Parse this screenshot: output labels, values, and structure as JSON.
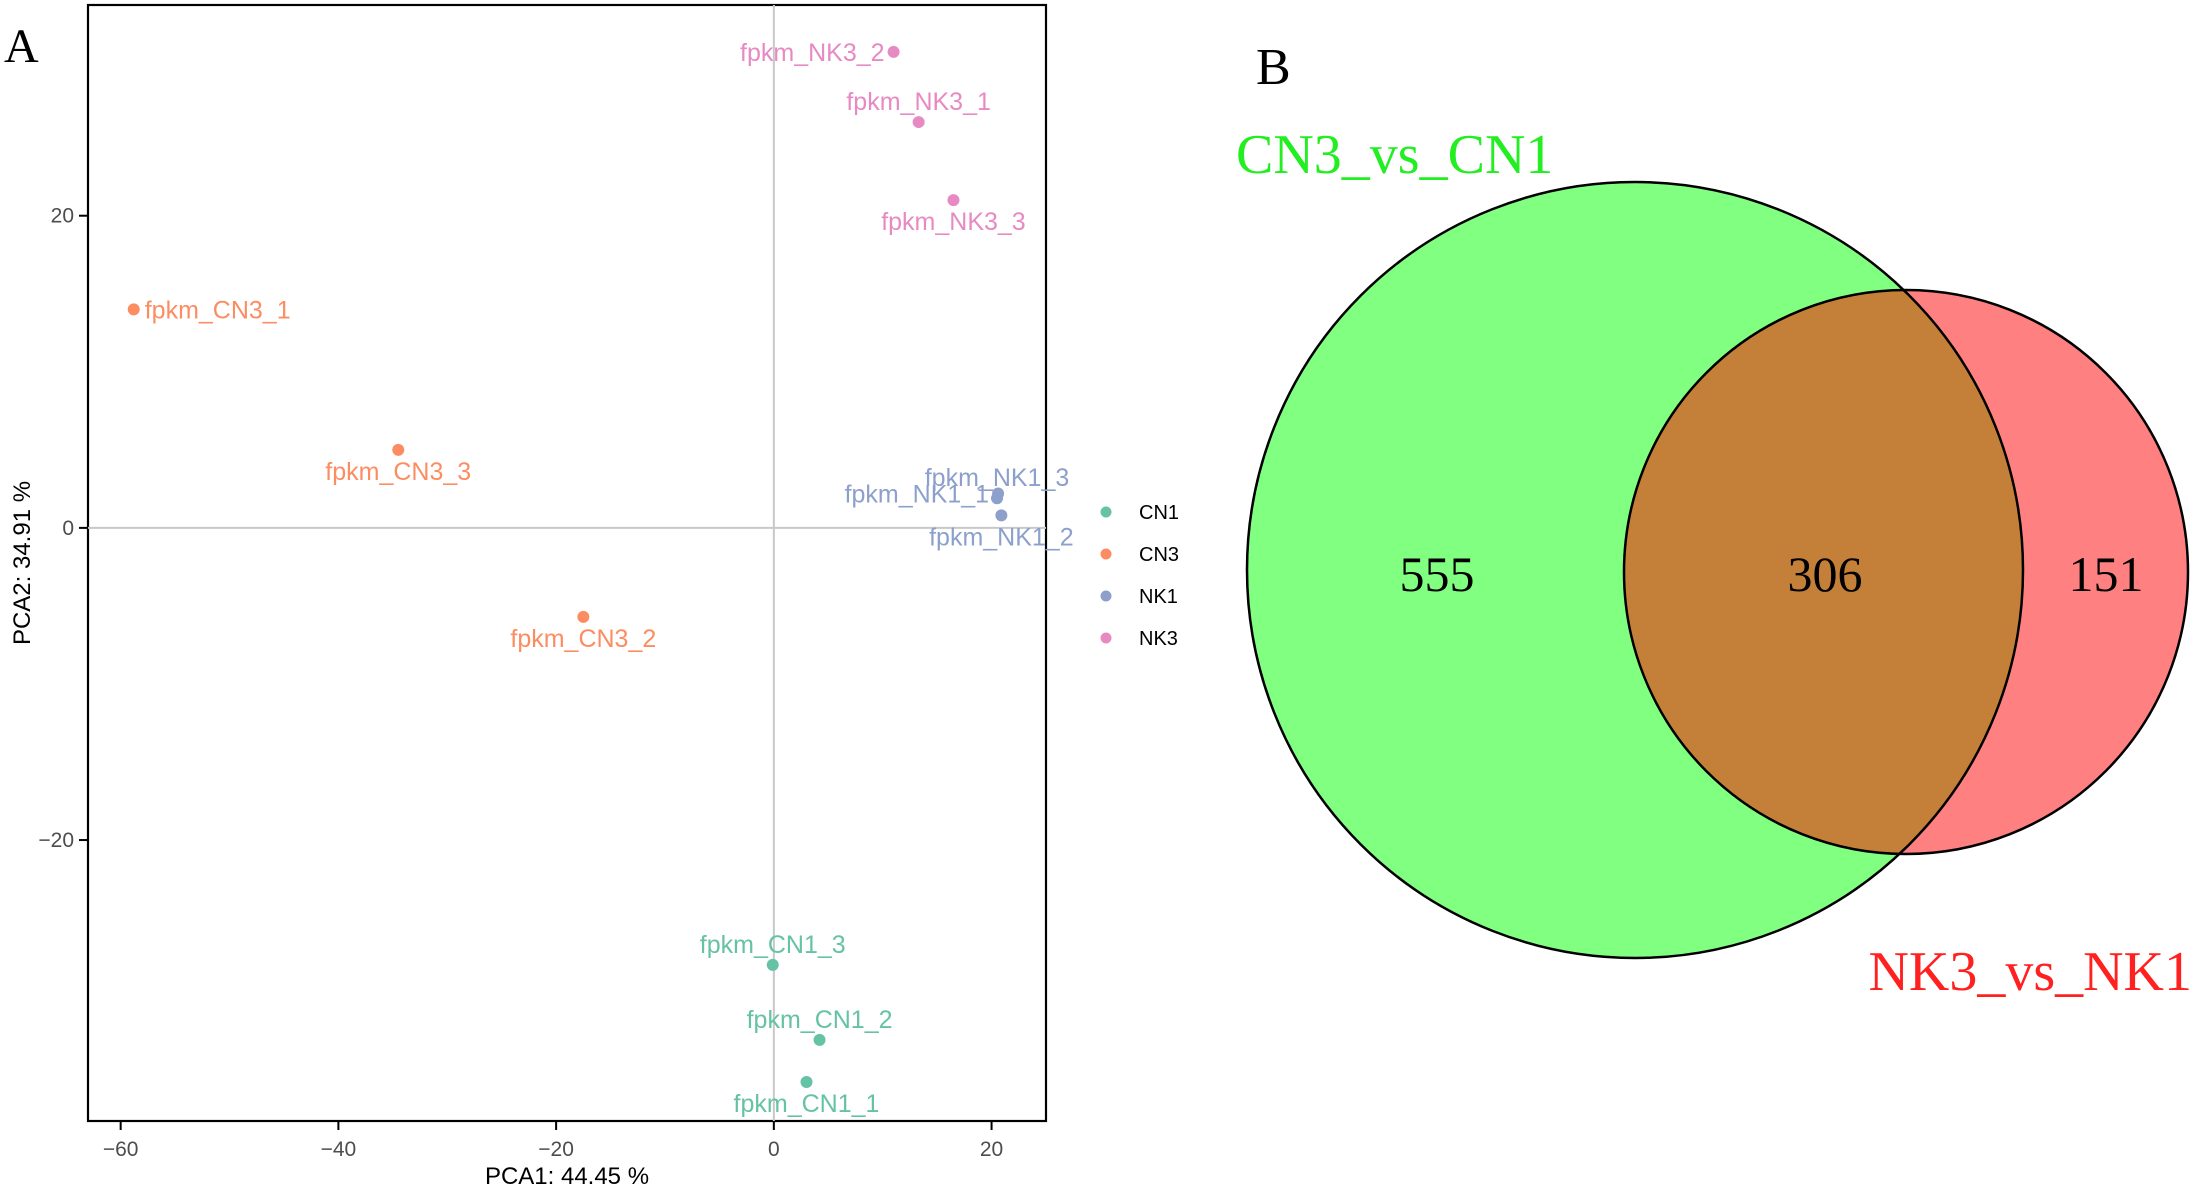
{
  "panel_a": {
    "label": "A",
    "chart_data": {
      "type": "scatter",
      "title": "",
      "xlabel": "PCA1:  44.45 %",
      "ylabel": "PCA2:  34.91 %",
      "xlim": [
        -63,
        25
      ],
      "ylim": [
        -38,
        33.5
      ],
      "xticks": [
        -60,
        -40,
        -20,
        0,
        20
      ],
      "yticks": [
        -20,
        0,
        20
      ],
      "xtick_labels": [
        "−60",
        "−40",
        "−20",
        "0",
        "20"
      ],
      "ytick_labels": [
        "−20",
        "0",
        "20"
      ],
      "reference_lines": {
        "x": 0,
        "y": 0
      },
      "grid": false,
      "legend_position": "right",
      "series": [
        {
          "name": "CN1",
          "color": "#66C2A5",
          "points": [
            {
              "x": 3.0,
              "y": -35.5,
              "label": "fpkm_CN1_1",
              "label_pos": "below"
            },
            {
              "x": 4.2,
              "y": -32.8,
              "label": "fpkm_CN1_2",
              "label_pos": "above"
            },
            {
              "x": -0.1,
              "y": -28.0,
              "label": "fpkm_CN1_3",
              "label_pos": "above"
            }
          ]
        },
        {
          "name": "CN3",
          "color": "#FC8D62",
          "points": [
            {
              "x": -58.8,
              "y": 14.0,
              "label": "fpkm_CN3_1",
              "label_pos": "right"
            },
            {
              "x": -17.5,
              "y": -5.7,
              "label": "fpkm_CN3_2",
              "label_pos": "below"
            },
            {
              "x": -34.5,
              "y": 5.0,
              "label": "fpkm_CN3_3",
              "label_pos": "below"
            }
          ]
        },
        {
          "name": "NK1",
          "color": "#8DA0CB",
          "points": [
            {
              "x": 20.6,
              "y": 2.2,
              "label": "fpkm_NK1_1",
              "label_pos": "left"
            },
            {
              "x": 20.9,
              "y": 0.8,
              "label": "fpkm_NK1_2",
              "label_pos": "below"
            },
            {
              "x": 20.5,
              "y": 1.9,
              "label": "fpkm_NK1_3",
              "label_pos": "above"
            }
          ]
        },
        {
          "name": "NK3",
          "color": "#E78AC3",
          "points": [
            {
              "x": 13.3,
              "y": 26.0,
              "label": "fpkm_NK3_1",
              "label_pos": "above"
            },
            {
              "x": 11.0,
              "y": 30.5,
              "label": "fpkm_NK3_2",
              "label_pos": "left"
            },
            {
              "x": 16.5,
              "y": 21.0,
              "label": "fpkm_NK3_3",
              "label_pos": "below"
            }
          ]
        }
      ],
      "legend": [
        {
          "label": "CN1",
          "color": "#66C2A5"
        },
        {
          "label": "CN3",
          "color": "#FC8D62"
        },
        {
          "label": "NK1",
          "color": "#8DA0CB"
        },
        {
          "label": "NK3",
          "color": "#E78AC3"
        }
      ]
    }
  },
  "panel_b": {
    "label": "B",
    "venn": {
      "set1": {
        "name": "CN3_vs_CN1",
        "color": "#80FF80",
        "name_color": "#22EE22",
        "only": "555"
      },
      "set2": {
        "name": "NK3_vs_NK1",
        "color": "#FF8080",
        "name_color": "#FF2020",
        "only": "151"
      },
      "overlap": {
        "value": "306",
        "color": "#C48038"
      }
    }
  }
}
